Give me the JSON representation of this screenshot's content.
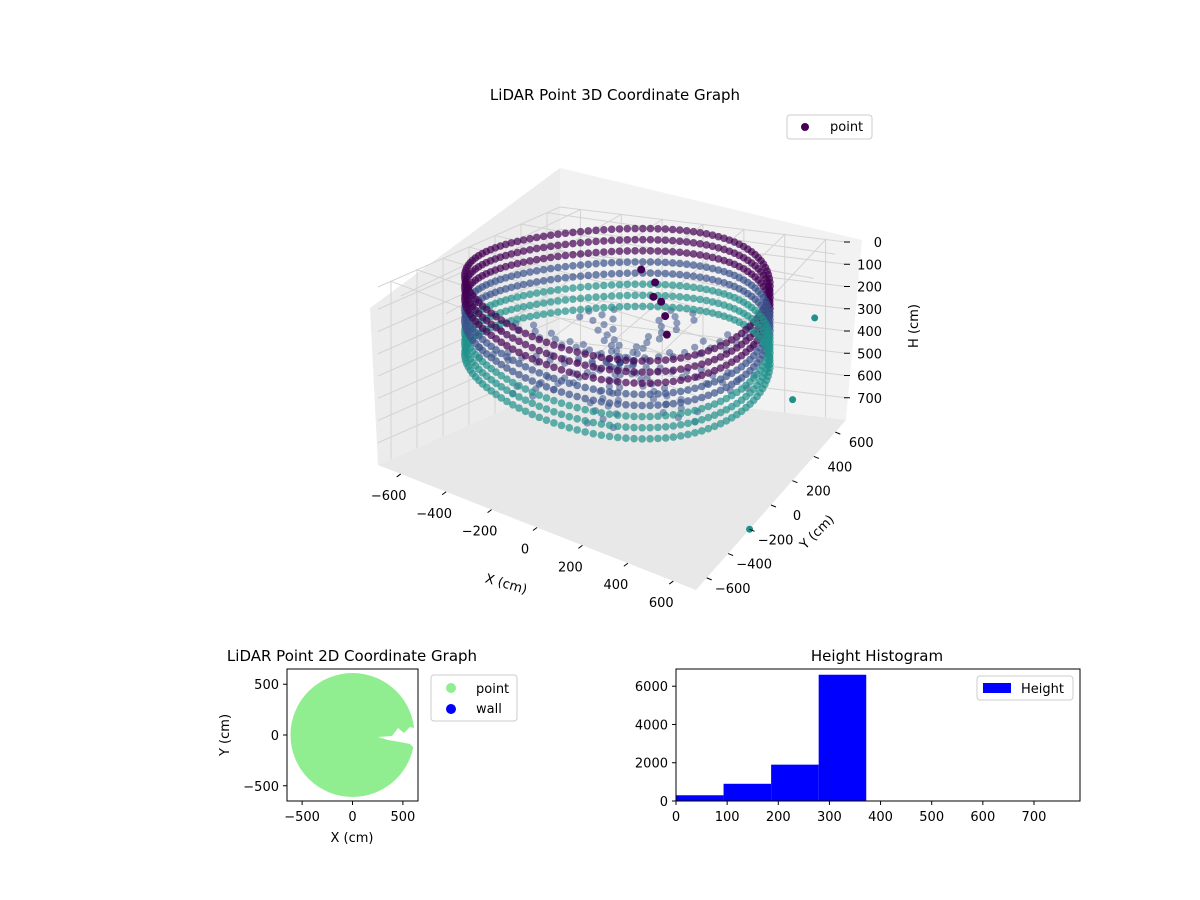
{
  "figure": {
    "colors": {
      "pane": "#f2f2f2",
      "grid": "#d3d3d3",
      "viridis_dark": "#440154",
      "viridis_mid": "#3b528b",
      "viridis_teal": "#21918c",
      "point_2d": "#90ee90",
      "wall": "#0000ff",
      "hist_bar": "#0000ff"
    }
  },
  "chart_data": [
    {
      "type": "scatter",
      "projection": "3d",
      "title": "LiDAR Point 3D Coordinate Graph",
      "xlabel": "X (cm)",
      "ylabel": "Y (cm)",
      "zlabel": "H (cm)",
      "xlim": [
        -700,
        700
      ],
      "ylim": [
        -700,
        700
      ],
      "zlim": [
        800,
        0
      ],
      "xticks": [
        "−600",
        "−400",
        "−200",
        "0",
        "200",
        "400",
        "600"
      ],
      "yticks": [
        "−600",
        "−400",
        "−200",
        "0",
        "200",
        "400",
        "600"
      ],
      "zticks": [
        "0",
        "100",
        "200",
        "300",
        "400",
        "500",
        "600",
        "700"
      ],
      "legend": {
        "position": "top-right",
        "entries": [
          "point"
        ]
      },
      "colormap": "viridis",
      "grid": true,
      "description_of_shape": "Points form a ring (cylindrical wall) of radius about 620 cm spanning heights 0–350 cm, with a central cluster near origin and a few scattered outliers.",
      "ring_radius": 620,
      "height_range": [
        0,
        350
      ]
    },
    {
      "type": "scatter",
      "title": "LiDAR Point 2D Coordinate Graph",
      "xlabel": "X (cm)",
      "ylabel": "Y (cm)",
      "xlim": [
        -650,
        650
      ],
      "ylim": [
        -650,
        650
      ],
      "xticks": [
        "−500",
        "0",
        "500"
      ],
      "yticks": [
        "500",
        "0",
        "−500"
      ],
      "legend": {
        "position": "outside-right",
        "entries": [
          "point",
          "wall"
        ]
      },
      "disc_radius": 620,
      "notch": {
        "from_x": 250,
        "to_x": 650,
        "y_top": 20,
        "y_bottom": -80
      }
    },
    {
      "type": "bar",
      "title": "Height Histogram",
      "xlabel": "",
      "ylabel": "",
      "series": [
        {
          "name": "Height",
          "bins": [
            {
              "from": 0,
              "to": 93,
              "count": 300
            },
            {
              "from": 93,
              "to": 186,
              "count": 900
            },
            {
              "from": 186,
              "to": 279,
              "count": 1900
            },
            {
              "from": 279,
              "to": 372,
              "count": 6600
            }
          ]
        }
      ],
      "xlim": [
        0,
        790
      ],
      "ylim": [
        0,
        6900
      ],
      "xticks": [
        "0",
        "100",
        "200",
        "300",
        "400",
        "500",
        "600",
        "700"
      ],
      "yticks": [
        "0",
        "2000",
        "4000",
        "6000"
      ],
      "legend": {
        "position": "top-right",
        "entries": [
          "Height"
        ]
      }
    }
  ]
}
